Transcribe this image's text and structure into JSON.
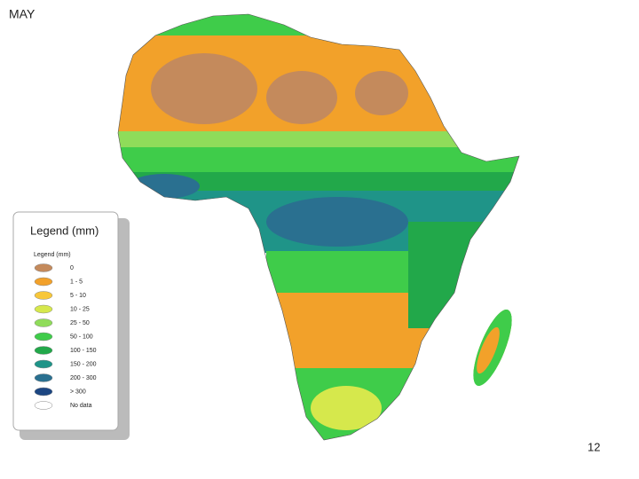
{
  "title": "MAY",
  "legend": {
    "title": "Legend (mm)",
    "subtitle": "Legend (mm)",
    "items": [
      {
        "label": "0",
        "color": "#c48a5c"
      },
      {
        "label": "1 - 5",
        "color": "#f2a12a"
      },
      {
        "label": "5 - 10",
        "color": "#f7c73a"
      },
      {
        "label": "10 - 25",
        "color": "#d6e84c"
      },
      {
        "label": "25 - 50",
        "color": "#8fdc5a"
      },
      {
        "label": "50 - 100",
        "color": "#3fcc4a"
      },
      {
        "label": "100 - 150",
        "color": "#22a84a"
      },
      {
        "label": "150 - 200",
        "color": "#1f9488"
      },
      {
        "label": "200 - 300",
        "color": "#2a7090"
      },
      {
        "label": "> 300",
        "color": "#1c4682"
      },
      {
        "label": "No data",
        "color": "#ffffff"
      }
    ]
  },
  "page_number": "12"
}
